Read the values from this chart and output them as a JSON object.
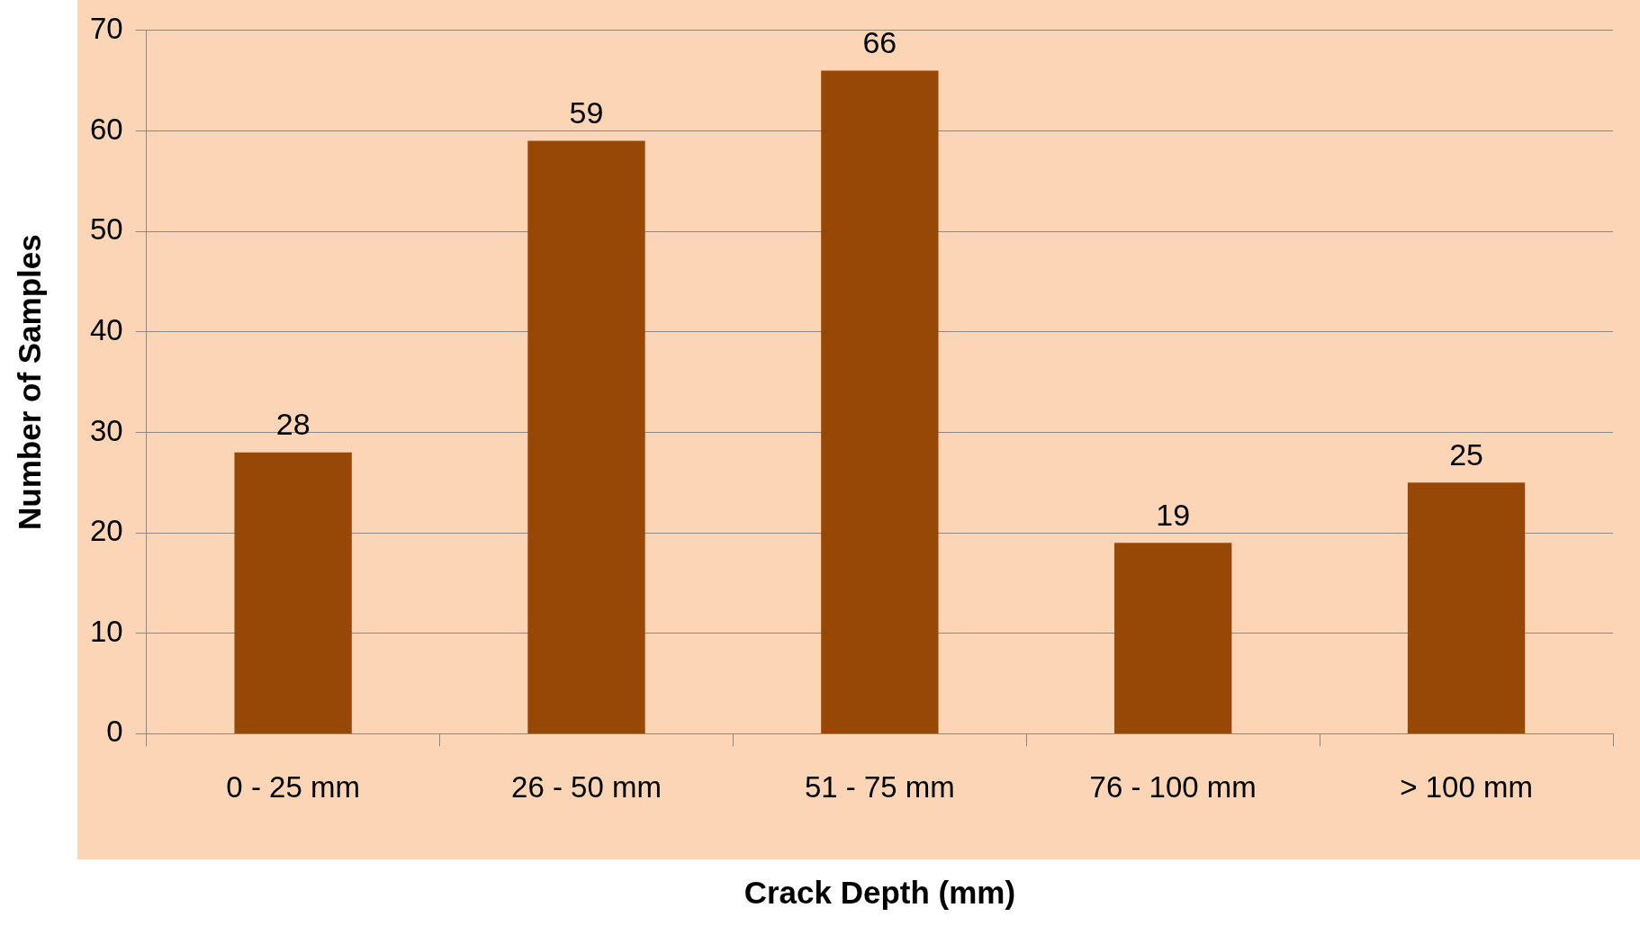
{
  "chart_data": {
    "type": "bar",
    "xlabel": "Crack Depth (mm)",
    "ylabel": "Number of Samples",
    "categories": [
      "0 - 25 mm",
      "26 - 50 mm",
      "51 - 75 mm",
      "76 - 100 mm",
      "> 100 mm"
    ],
    "values": [
      28,
      59,
      66,
      19,
      25
    ],
    "color": "#974706",
    "ylim": [
      0,
      70
    ],
    "yticks": [
      0,
      10,
      20,
      30,
      40,
      50,
      60,
      70
    ],
    "grid": "y",
    "data_labels": true
  }
}
